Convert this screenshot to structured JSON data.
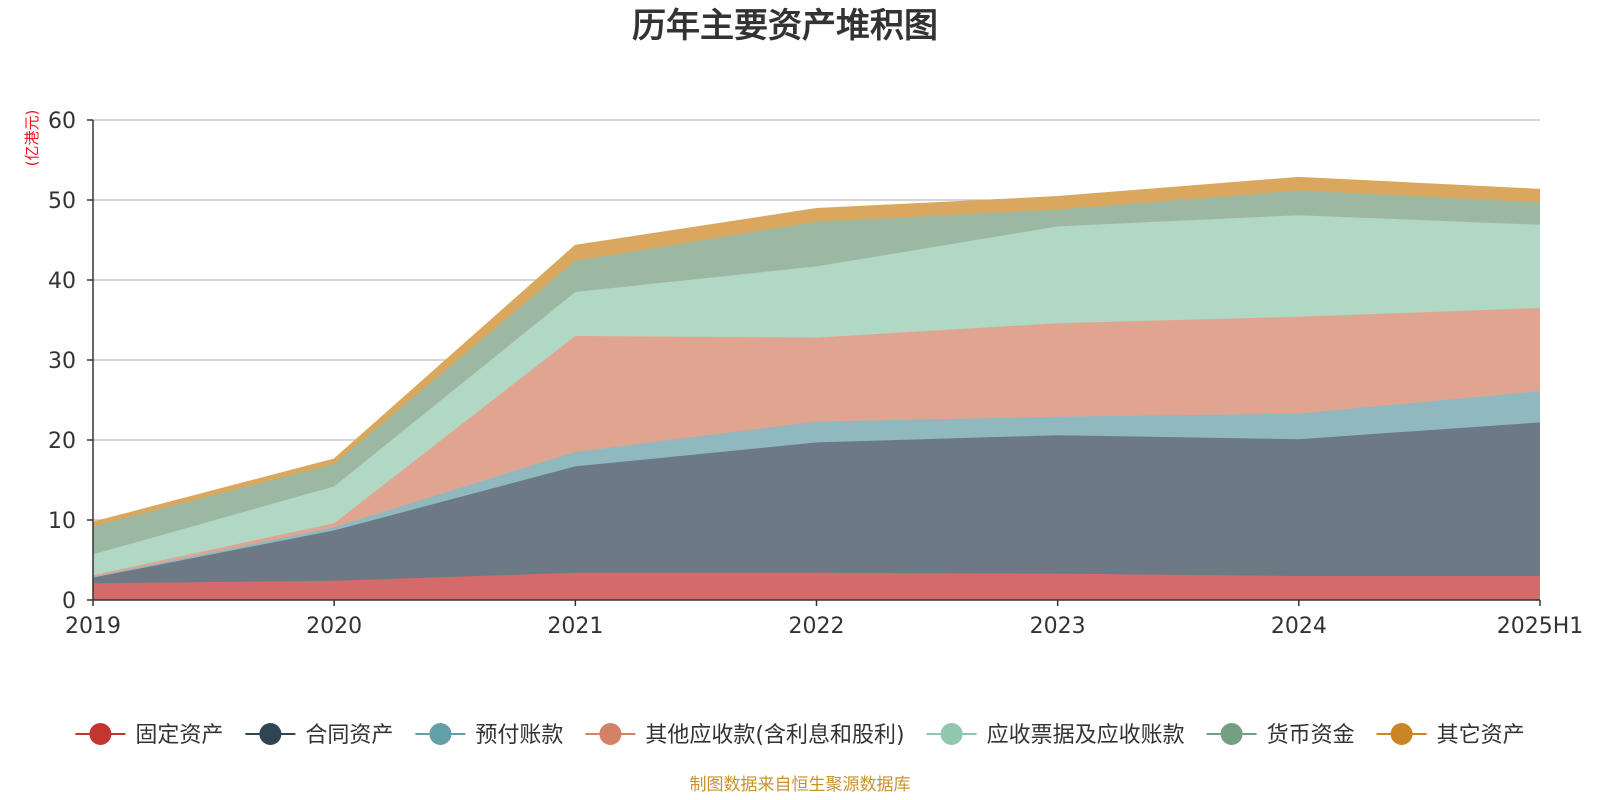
{
  "chart_data": {
    "type": "area",
    "stacked": true,
    "title": "历年主要资产堆积图",
    "unit_label": "(亿港元)",
    "source_note": "制图数据来自恒生聚源数据库",
    "categories": [
      "2019",
      "2020",
      "2021",
      "2022",
      "2023",
      "2024",
      "2025H1"
    ],
    "ylim": [
      0,
      60
    ],
    "yticks": [
      0,
      10,
      20,
      30,
      40,
      50,
      60
    ],
    "grid": true,
    "legend_position": "bottom",
    "series": [
      {
        "name": "固定资产",
        "color": "#c23531",
        "area_color": "#d46b6a",
        "values": [
          2.1,
          2.4,
          3.4,
          3.4,
          3.3,
          3.0,
          3.0
        ]
      },
      {
        "name": "合同资产",
        "color": "#2f4554",
        "area_color": "#6d7a86",
        "values": [
          0.7,
          6.3,
          13.3,
          16.3,
          17.3,
          17.1,
          19.2
        ]
      },
      {
        "name": "预付账款",
        "color": "#61a0a8",
        "area_color": "#8fb9bf",
        "values": [
          0.1,
          0.4,
          1.8,
          2.6,
          2.3,
          3.2,
          3.9
        ]
      },
      {
        "name": "其他应收款(含利息和股利)",
        "color": "#d48265",
        "area_color": "#e0a590",
        "values": [
          0.2,
          0.5,
          14.5,
          10.5,
          11.7,
          12.1,
          10.4
        ]
      },
      {
        "name": "应收票据及应收账款",
        "color": "#91c7ae",
        "area_color": "#b1d7c5",
        "values": [
          2.6,
          4.6,
          5.5,
          8.9,
          12.1,
          12.7,
          10.4
        ]
      },
      {
        "name": "货币资金",
        "color": "#749f83",
        "area_color": "#9db8a2",
        "values": [
          3.5,
          2.8,
          3.9,
          5.6,
          2.1,
          3.1,
          2.8
        ]
      },
      {
        "name": "其它资产",
        "color": "#ca8622",
        "area_color": "#d9a85e",
        "values": [
          0.5,
          0.6,
          1.9,
          1.6,
          1.6,
          1.6,
          1.6
        ]
      }
    ]
  }
}
